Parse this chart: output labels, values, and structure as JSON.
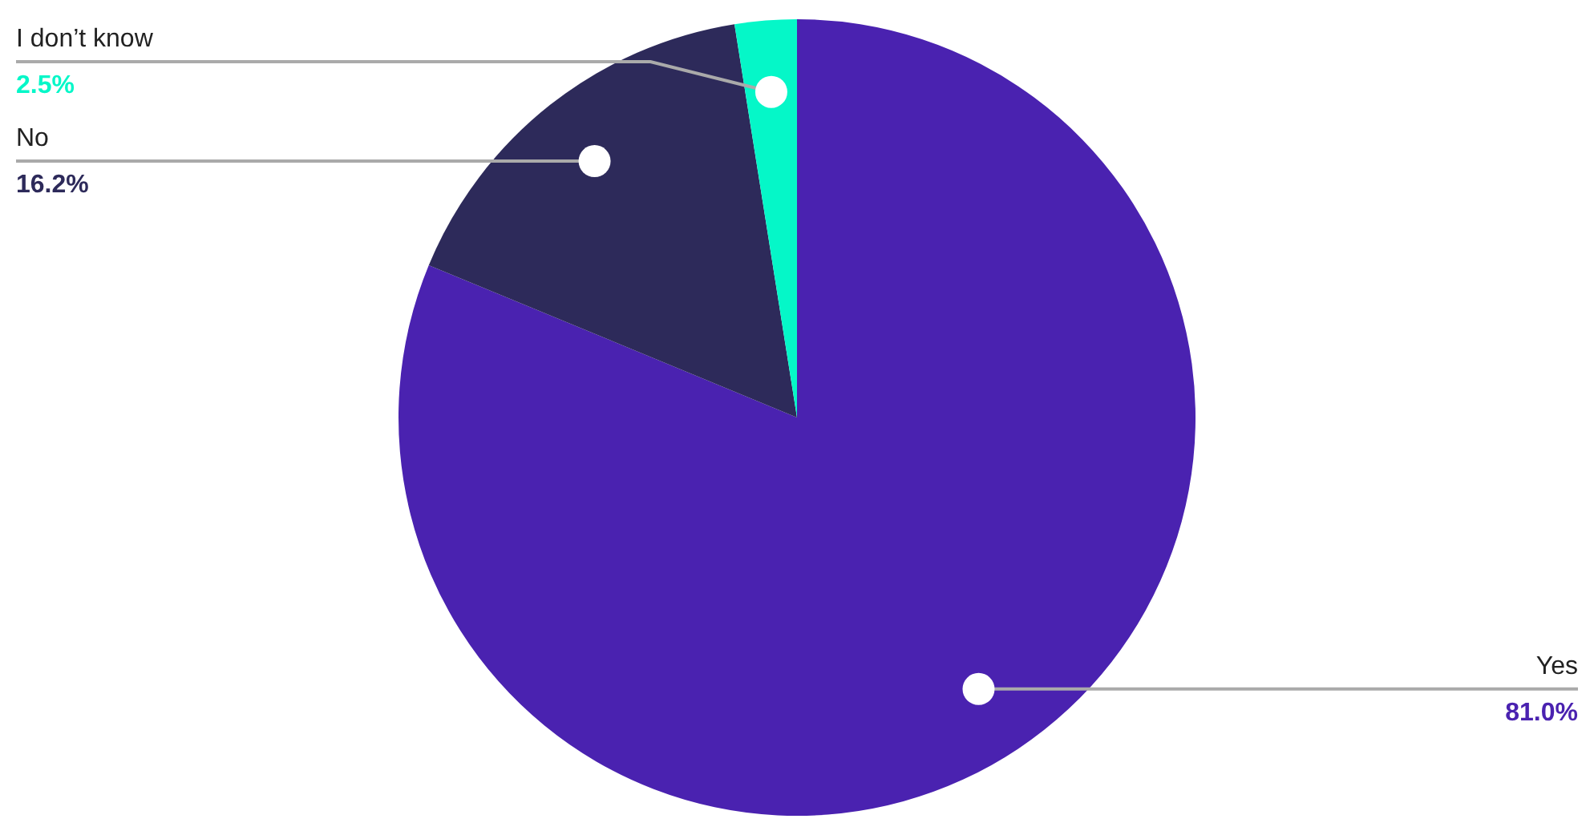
{
  "chart_data": {
    "type": "pie",
    "categories": [
      "Yes",
      "No",
      "I don’t know"
    ],
    "values": [
      81.0,
      16.2,
      2.5
    ],
    "colors": [
      "#4a22b0",
      "#2d2a5a",
      "#05f7c8"
    ],
    "value_labels": [
      "81.0%",
      "16.2%",
      "2.5%"
    ],
    "legend": false
  }
}
